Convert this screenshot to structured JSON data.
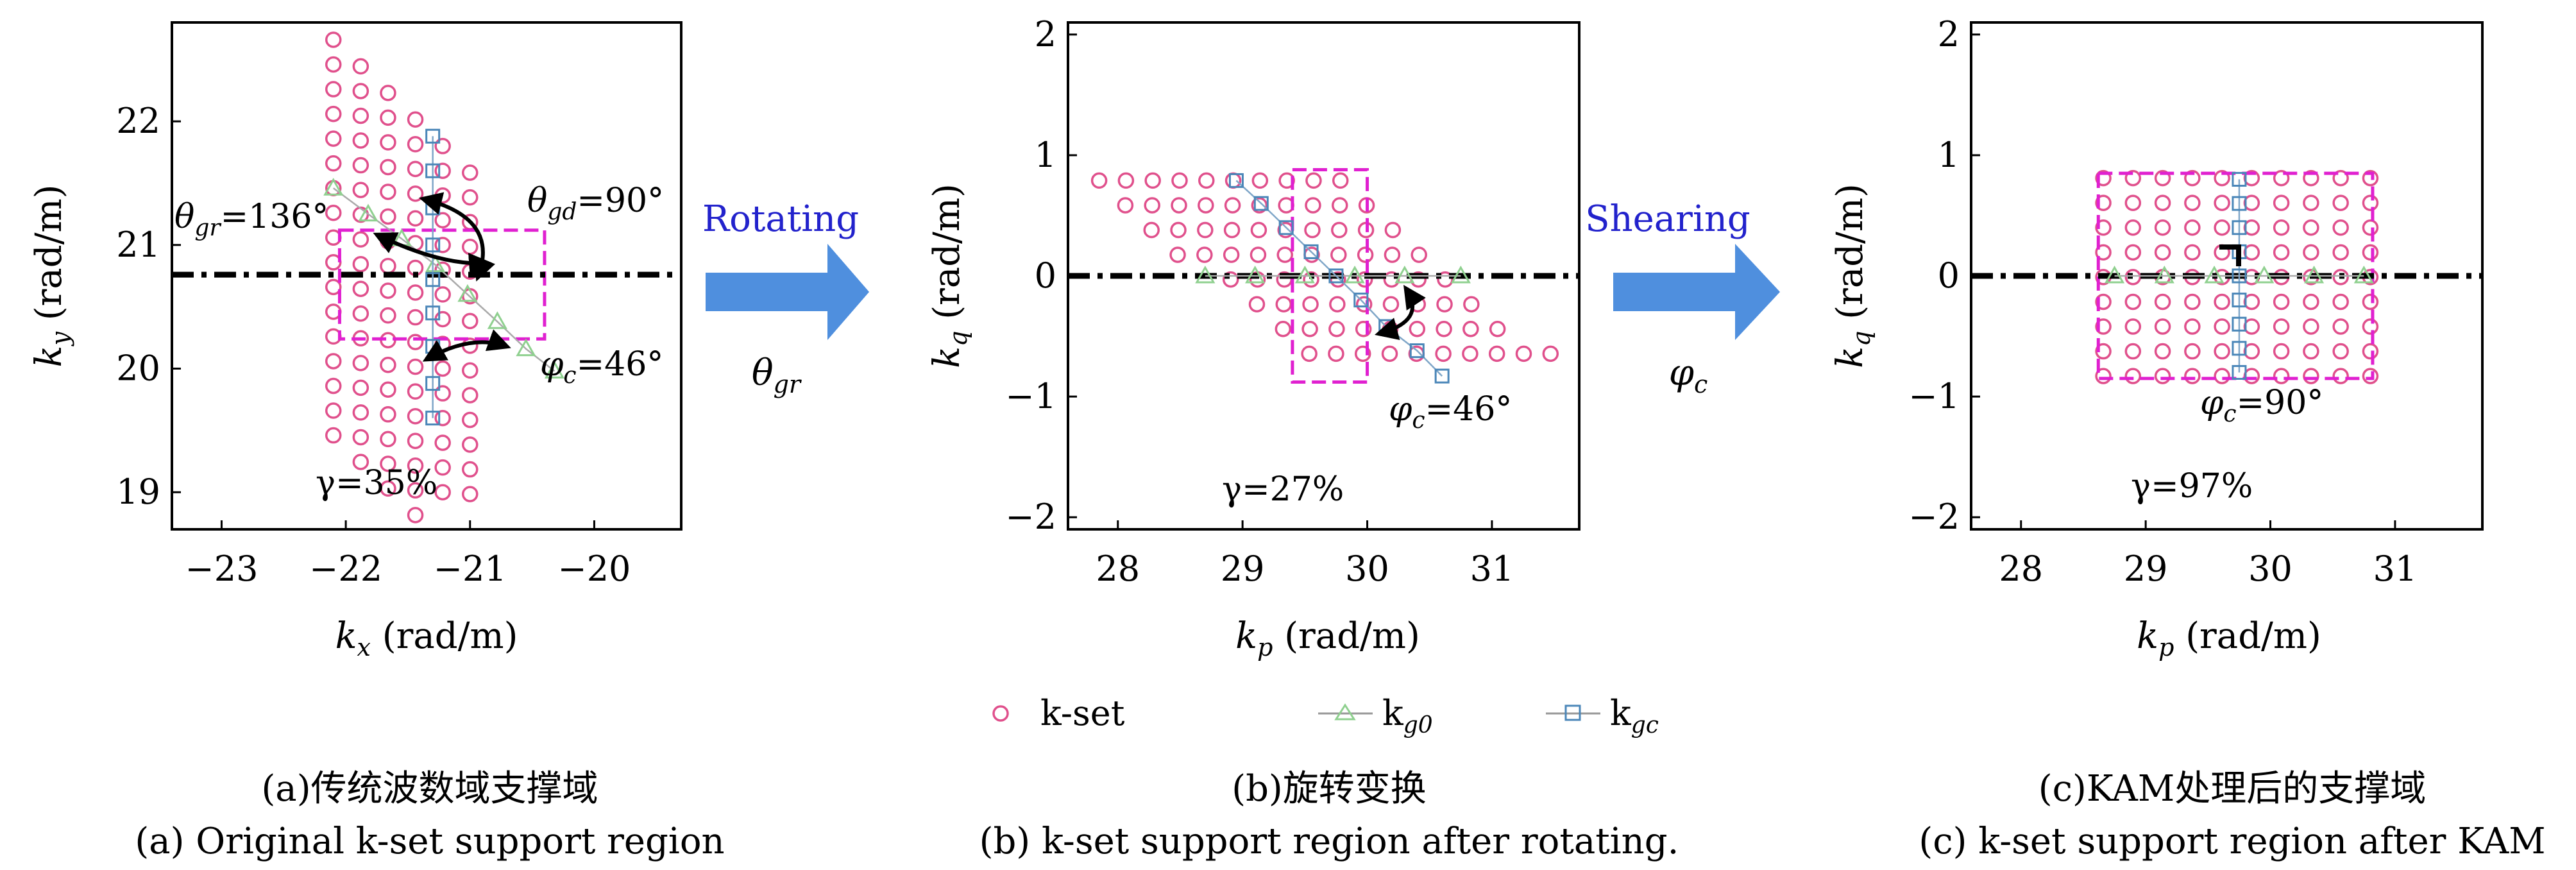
{
  "chart_data": [
    {
      "type": "scatter",
      "panel": "a",
      "xlabel": "k_x (rad/m)",
      "ylabel": "k_y (rad/m)",
      "xlim": [
        -23.4,
        -19.3
      ],
      "ylim": [
        18.7,
        22.8
      ],
      "xticks": [
        "-23",
        "-22",
        "-21",
        "-20"
      ],
      "yticks": [
        "19",
        "20",
        "21",
        "22"
      ],
      "kset_grid": {
        "angle_deg": 136,
        "rows": 16,
        "cols": 6,
        "start": [
          -22.1,
          22.66
        ],
        "row_step": 0.225,
        "col_step": 0.225
      },
      "kg0": [
        [
          -22.1,
          21.46
        ],
        [
          -21.82,
          21.25
        ],
        [
          -21.55,
          21.05
        ],
        [
          -21.28,
          20.84
        ],
        [
          -21.02,
          20.6
        ],
        [
          -20.78,
          20.38
        ],
        [
          -20.55,
          20.16
        ],
        [
          -20.32,
          19.98
        ]
      ],
      "kgc": [
        [
          -21.3,
          21.88
        ],
        [
          -21.3,
          21.6
        ],
        [
          -21.3,
          21.3
        ],
        [
          -21.3,
          21.0
        ],
        [
          -21.3,
          20.72
        ],
        [
          -21.3,
          20.45
        ],
        [
          -21.3,
          20.18
        ],
        [
          -21.3,
          19.88
        ],
        [
          -21.3,
          19.6
        ]
      ],
      "box": {
        "x": [
          -22.05,
          -20.4
        ],
        "y": [
          20.24,
          21.12
        ]
      },
      "dashline_y": 20.76,
      "annotations": {
        "theta_gr": "θ",
        "theta_gr_sub": "gr",
        "theta_gr_val": "=136°",
        "theta_gd": "θ",
        "theta_gd_sub": "gd",
        "theta_gd_val": "=90°",
        "phi": "φ",
        "phi_sub": "c",
        "phi_val": "=46°",
        "gamma": "γ=35%"
      },
      "caption_cn": "(a)传统波数域支撑域",
      "caption_en": "(a) Original k-set support region"
    },
    {
      "type": "scatter",
      "panel": "b",
      "xlabel": "k_p (rad/m)",
      "ylabel": "k_q (rad/m)",
      "xlim": [
        27.6,
        31.7
      ],
      "ylim": [
        -2.1,
        2.1
      ],
      "xticks": [
        "28",
        "29",
        "30",
        "31"
      ],
      "yticks": [
        "-2",
        "-1",
        "0",
        "1",
        "2"
      ],
      "kset_grid": {
        "angle_deg": 46,
        "rows": 7,
        "cols": 6,
        "start": [
          27.85,
          0.79
        ],
        "row_step": 0.21,
        "col_step": 0.21
      },
      "kg0": [
        [
          28.7,
          0.0
        ],
        [
          29.1,
          0.0
        ],
        [
          29.5,
          0.0
        ],
        [
          29.9,
          0.0
        ],
        [
          30.3,
          0.0
        ],
        [
          30.75,
          0.0
        ]
      ],
      "kgc": [
        [
          28.95,
          0.79
        ],
        [
          29.15,
          0.6
        ],
        [
          29.35,
          0.4
        ],
        [
          29.55,
          0.2
        ],
        [
          29.75,
          0.0
        ],
        [
          29.95,
          -0.2
        ],
        [
          30.15,
          -0.42
        ],
        [
          30.4,
          -0.62
        ],
        [
          30.6,
          -0.83
        ]
      ],
      "box": {
        "x": [
          29.4,
          30.0
        ],
        "y": [
          -0.88,
          0.88
        ]
      },
      "dashline_y": 0.0,
      "annotations": {
        "phi": "φ",
        "phi_sub": "c",
        "phi_val": "=46°",
        "gamma": "γ=27%"
      },
      "caption_cn": "(b)旋转变换",
      "caption_en": "(b) k-set support region after rotating."
    },
    {
      "type": "scatter",
      "panel": "c",
      "xlabel": "k_p (rad/m)",
      "ylabel": "k_q (rad/m)",
      "xlim": [
        27.6,
        31.7
      ],
      "ylim": [
        -2.1,
        2.1
      ],
      "xticks": [
        "28",
        "29",
        "30",
        "31"
      ],
      "yticks": [
        "-2",
        "-1",
        "0",
        "1",
        "2"
      ],
      "kset_grid": {
        "rows": 9,
        "cols": 10,
        "x0": 28.66,
        "dx": 0.238,
        "y0": -0.83,
        "dy": 0.205
      },
      "kg0": [
        [
          28.75,
          0.0
        ],
        [
          29.15,
          0.0
        ],
        [
          29.55,
          0.0
        ],
        [
          29.95,
          0.0
        ],
        [
          30.35,
          0.0
        ],
        [
          30.75,
          0.0
        ]
      ],
      "kgc": [
        [
          29.75,
          0.8
        ],
        [
          29.75,
          0.6
        ],
        [
          29.75,
          0.4
        ],
        [
          29.75,
          0.2
        ],
        [
          29.75,
          0.0
        ],
        [
          29.75,
          -0.2
        ],
        [
          29.75,
          -0.4
        ],
        [
          29.75,
          -0.6
        ],
        [
          29.75,
          -0.8
        ]
      ],
      "box": {
        "x": [
          28.62,
          30.82
        ],
        "y": [
          -0.85,
          0.85
        ]
      },
      "dashline_y": 0.0,
      "annotations": {
        "phi": "φ",
        "phi_sub": "c",
        "phi_val": "=90°",
        "gamma": "γ=97%"
      },
      "caption_cn": "(c)KAM处理后的支撑域",
      "caption_en": "(c) k-set support region after KAM"
    }
  ],
  "transitions": [
    {
      "label": "Rotating",
      "symbol": "θ",
      "symbol_sub": "gr"
    },
    {
      "label": "Shearing",
      "symbol": "φ",
      "symbol_sub": "c"
    }
  ],
  "legend": [
    {
      "label": "k-set",
      "marker": "circle",
      "color": "#e0508c"
    },
    {
      "label": "k",
      "sub": "g0",
      "marker": "triangle",
      "color": "#8fd08f"
    },
    {
      "label": "k",
      "sub": "gc",
      "marker": "square",
      "color": "#4a86b8"
    }
  ],
  "colors": {
    "kset": "#e0508c",
    "kg0": "#8fd08f",
    "kgc": "#4a86b8",
    "box": "#e020d0",
    "arrow_fill": "#4f8fde",
    "arrow_label": "#2222cc"
  }
}
